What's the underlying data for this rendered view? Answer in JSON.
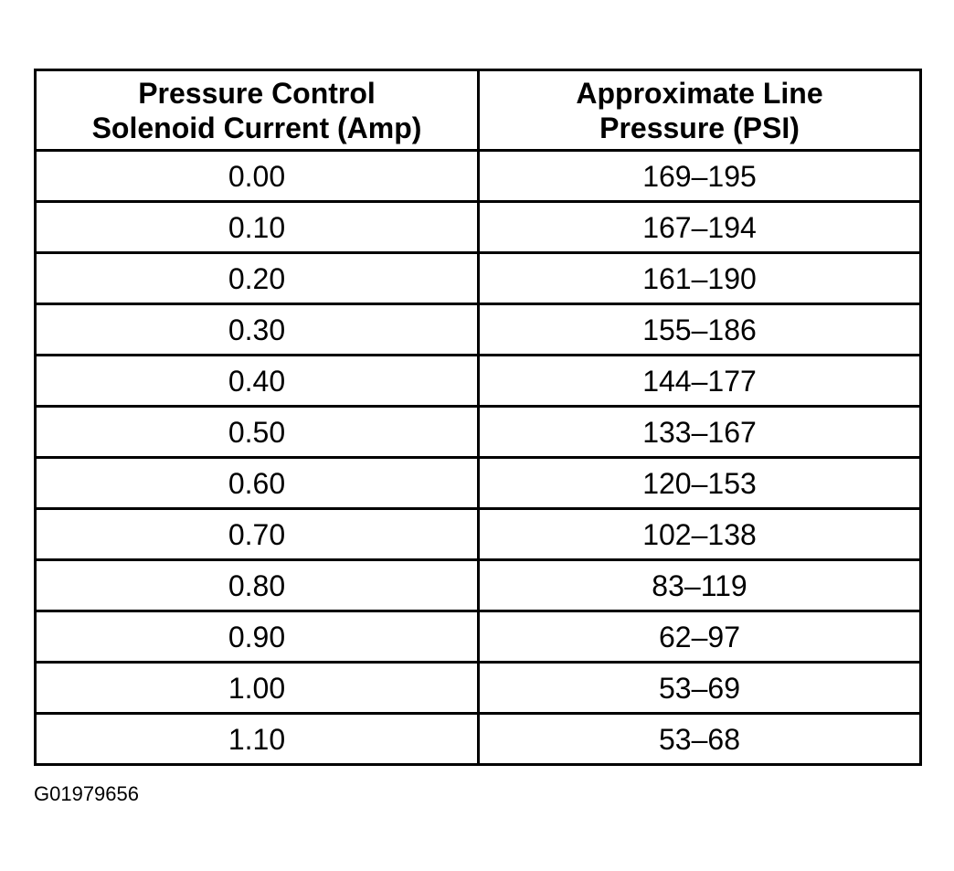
{
  "table": {
    "headers": [
      {
        "line1": "Pressure Control",
        "line2": "Solenoid Current (Amp)"
      },
      {
        "line1": "Approximate Line",
        "line2": "Pressure (PSI)"
      }
    ],
    "rows": [
      {
        "current": "0.00",
        "pressure": "169–195"
      },
      {
        "current": "0.10",
        "pressure": "167–194"
      },
      {
        "current": "0.20",
        "pressure": "161–190"
      },
      {
        "current": "0.30",
        "pressure": "155–186"
      },
      {
        "current": "0.40",
        "pressure": "144–177"
      },
      {
        "current": "0.50",
        "pressure": "133–167"
      },
      {
        "current": "0.60",
        "pressure": "120–153"
      },
      {
        "current": "0.70",
        "pressure": "102–138"
      },
      {
        "current": "0.80",
        "pressure": "83–119"
      },
      {
        "current": "0.90",
        "pressure": "62–97"
      },
      {
        "current": "1.00",
        "pressure": "53–69"
      },
      {
        "current": "1.10",
        "pressure": "53–68"
      }
    ]
  },
  "figure_id": "G01979656"
}
